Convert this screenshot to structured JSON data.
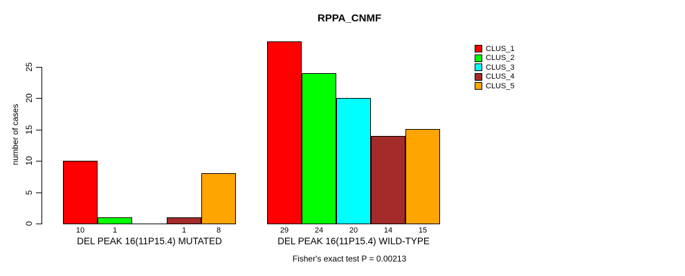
{
  "title": "RPPA_CNMF",
  "footer": "Fisher's exact test P = 0.00213",
  "chart_data": {
    "type": "bar",
    "title": "RPPA_CNMF",
    "xlabel": "",
    "ylabel": "number of cases",
    "ylim": [
      0,
      25
    ],
    "yticks": [
      0,
      5,
      10,
      15,
      20,
      25
    ],
    "grid": false,
    "legend_position": "topright",
    "categories": [
      "CLUS_1",
      "CLUS_2",
      "CLUS_3",
      "CLUS_4",
      "CLUS_5"
    ],
    "colors": [
      "#FF0000",
      "#00FF00",
      "#00FFFF",
      "#A52A2A",
      "#FFA500"
    ],
    "groups": [
      {
        "label": "DEL PEAK 16(11P15.4) MUTATED",
        "values": [
          10,
          1,
          0,
          1,
          8
        ],
        "bar_labels": [
          "10",
          "1",
          "",
          "1",
          "8"
        ]
      },
      {
        "label": "DEL PEAK 16(11P15.4) WILD-TYPE",
        "values": [
          29,
          24,
          20,
          14,
          15
        ],
        "bar_labels": [
          "29",
          "24",
          "20",
          "14",
          "15"
        ]
      }
    ],
    "annotation": "Fisher's exact test P = 0.00213"
  }
}
